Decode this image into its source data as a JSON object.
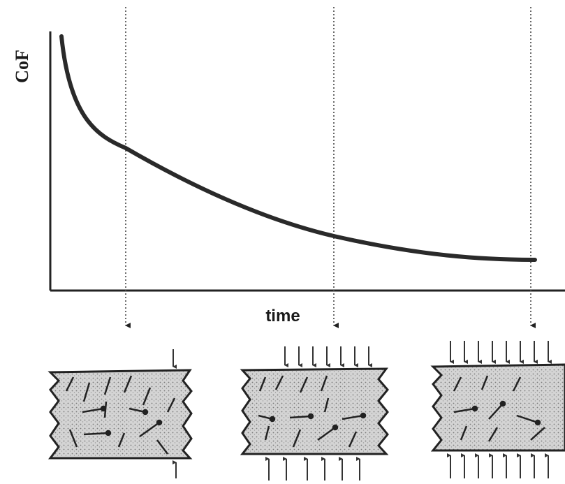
{
  "axis_labels": {
    "y": "CoF",
    "x": "time"
  }
}
